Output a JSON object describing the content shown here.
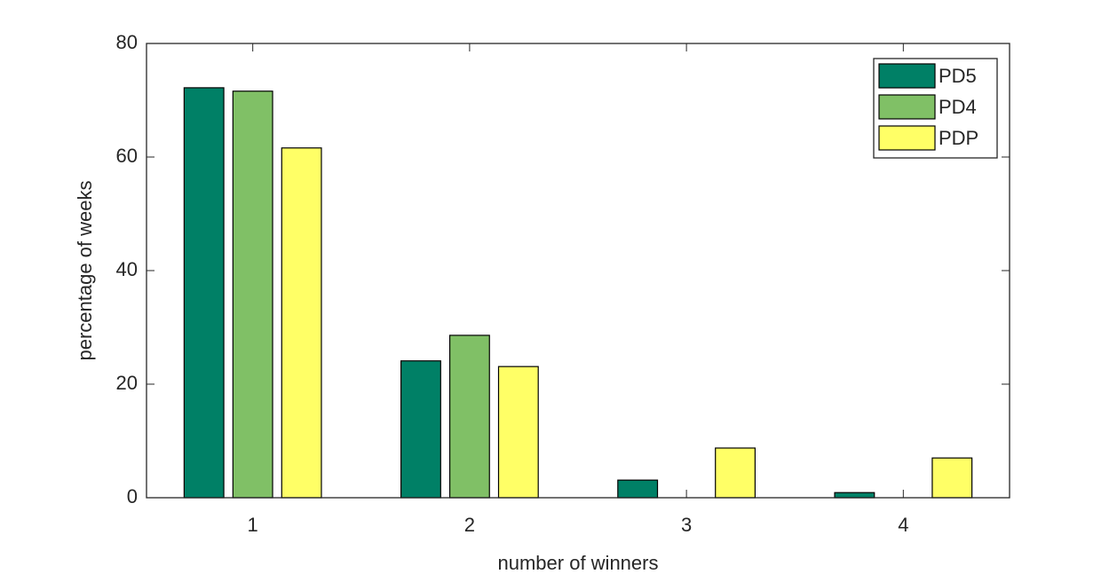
{
  "chart_data": {
    "type": "bar",
    "xlabel": "number of winners",
    "ylabel": "percentage of weeks",
    "x": [
      1,
      2,
      3,
      4
    ],
    "series": [
      {
        "name": "PD5",
        "color": "#008066",
        "values": [
          72.2,
          24.1,
          3.1,
          0.9
        ]
      },
      {
        "name": "PD4",
        "color": "#80c066",
        "values": [
          71.6,
          28.6,
          0,
          0
        ]
      },
      {
        "name": "PDP",
        "color": "#ffff66",
        "values": [
          61.6,
          23.1,
          8.75,
          7.0
        ]
      }
    ],
    "xlim": [
      0.51,
      4.49
    ],
    "xticks": [
      1,
      2,
      3,
      4
    ],
    "ylim": [
      0,
      80
    ],
    "yticks": [
      0,
      20,
      40,
      60,
      80
    ],
    "legend": "upper right",
    "grid": false
  }
}
